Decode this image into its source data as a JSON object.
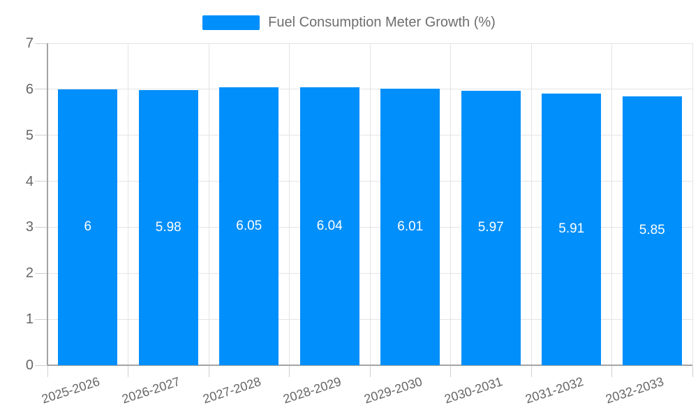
{
  "chart_data": {
    "type": "bar",
    "title": "",
    "xlabel": "",
    "ylabel": "",
    "categories": [
      "2025-2026",
      "2026-2027",
      "2027-2028",
      "2028-2029",
      "2029-2030",
      "2030-2031",
      "2031-2032",
      "2032-2033"
    ],
    "series": [
      {
        "name": "Fuel Consumption Meter Growth (%)",
        "values": [
          6,
          5.98,
          6.05,
          6.04,
          6.01,
          5.97,
          5.91,
          5.85
        ]
      }
    ],
    "value_labels": [
      "6",
      "5.98",
      "6.05",
      "6.04",
      "6.01",
      "5.97",
      "5.91",
      "5.85"
    ],
    "ylim": [
      0,
      7
    ],
    "yticks": [
      0,
      1,
      2,
      3,
      4,
      5,
      6,
      7
    ],
    "grid": true,
    "legend_position": "top"
  },
  "colors": {
    "bar": "#008FFB",
    "grid": "#e4e4e4",
    "axis": "#a3a3a3",
    "tick": "#cfcfcf",
    "axis_label": "#666666",
    "legend_text": "#6e6e6e",
    "value_label": "#ffffff",
    "background": "#ffffff"
  }
}
